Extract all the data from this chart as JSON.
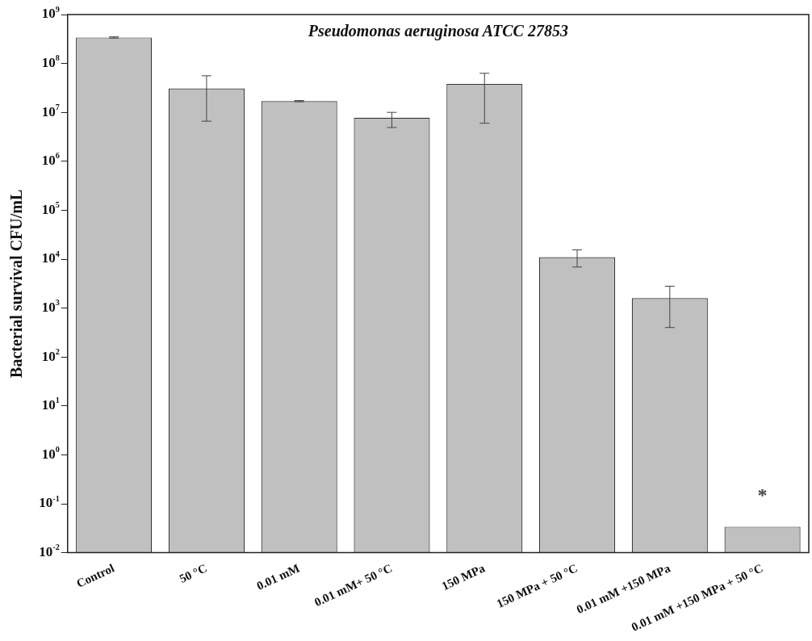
{
  "chart_data": {
    "type": "bar",
    "title": "Pseudomonas aeruginosa ATCC 27853",
    "ylabel": "Bacterial survival CFU/mL",
    "categories": [
      "Control",
      "50 °C",
      "0.01 mM",
      "0.01 mM+ 50 °C",
      "150 MPa",
      "150 MPa + 50 °C",
      "0.01 mM +150 MPa",
      "0.01 mM +150 MPa + 50 °C"
    ],
    "values": [
      340000000,
      31000000,
      17000000,
      7800000,
      38000000,
      11000,
      1600,
      0.034
    ],
    "errors": [
      10000000,
      [
        6600000,
        56000000
      ],
      500000,
      [
        4900000,
        10000000
      ],
      [
        6000000,
        63000000
      ],
      [
        6900,
        15500
      ],
      [
        400,
        2800
      ],
      null
    ],
    "color": "#c0c0c0",
    "log": true,
    "ylim": [
      0.01,
      1000000000
    ],
    "yticks": [
      {
        "value": 0.01,
        "label": "10$^{-2}$"
      },
      {
        "value": 0.1,
        "label": "10$^{-1}$"
      },
      {
        "value": 1,
        "label": "10$^{0}$"
      },
      {
        "value": 10,
        "label": "10$^{1}$"
      },
      {
        "value": 100,
        "label": "10$^{2}$"
      },
      {
        "value": 1000,
        "label": "10$^{3}$"
      },
      {
        "value": 10000,
        "label": "10$^{4}$"
      },
      {
        "value": 100000,
        "label": "10$^{5}$"
      },
      {
        "value": 1000000,
        "label": "10$^{6}$"
      },
      {
        "value": 10000000,
        "label": "10$^{7}$"
      },
      {
        "value": 100000000,
        "label": "10$^{8}$"
      },
      {
        "value": 1000000000,
        "label": "10$^{9}$"
      }
    ],
    "annotations": [
      "*"
    ]
  }
}
